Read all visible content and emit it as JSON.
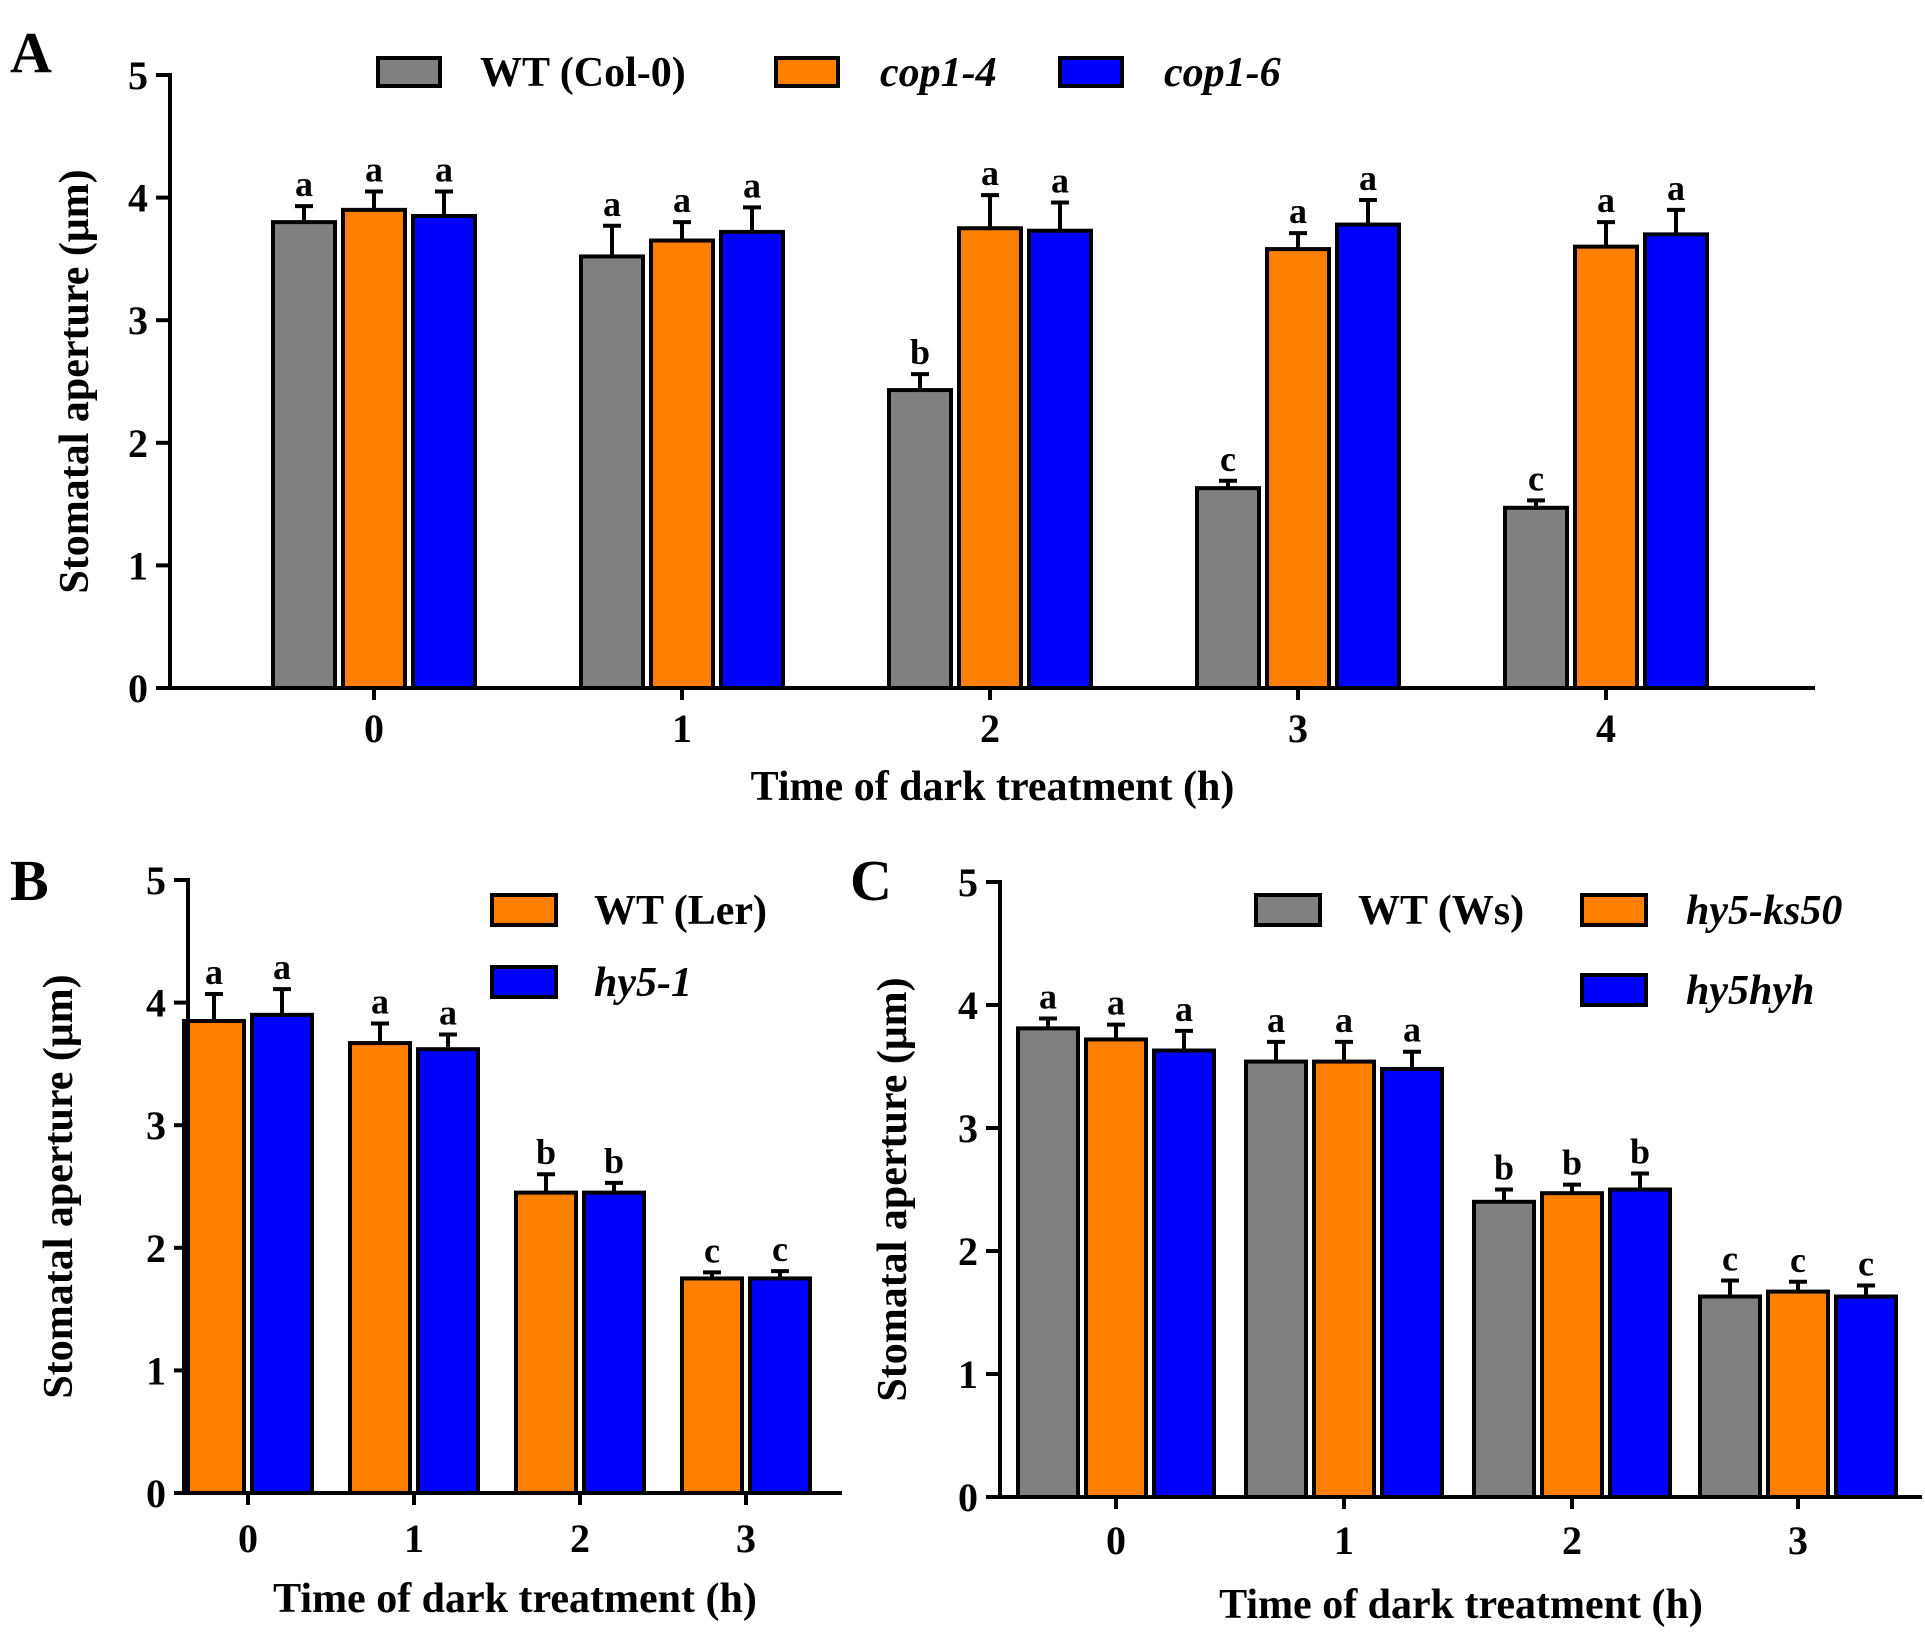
{
  "colors": {
    "grey": "#808080",
    "orange": "#ff7f00",
    "blue": "#0000ff",
    "axis": "#000000"
  },
  "chart_data": [
    {
      "panel": "A",
      "type": "bar",
      "xlabel": "Time of dark treatment (h)",
      "ylabel": "Stomatal aperture (μm)",
      "ylim": [
        0,
        5
      ],
      "yticks": [
        "0",
        "1",
        "2",
        "3",
        "4",
        "5"
      ],
      "categories": [
        "0",
        "1",
        "2",
        "3",
        "4"
      ],
      "legend_position": "top",
      "series": [
        {
          "name": "WT (Col-0)",
          "italic": false,
          "color": "grey",
          "values": [
            3.8,
            3.52,
            2.43,
            1.63,
            1.47
          ],
          "errors": [
            0.13,
            0.25,
            0.13,
            0.06,
            0.06
          ],
          "letters": [
            "a",
            "a",
            "b",
            "c",
            "c"
          ]
        },
        {
          "name": "cop1-4",
          "italic": true,
          "color": "orange",
          "values": [
            3.9,
            3.65,
            3.75,
            3.58,
            3.6
          ],
          "errors": [
            0.15,
            0.15,
            0.27,
            0.13,
            0.2
          ],
          "letters": [
            "a",
            "a",
            "a",
            "a",
            "a"
          ]
        },
        {
          "name": "cop1-6",
          "italic": true,
          "color": "blue",
          "values": [
            3.85,
            3.72,
            3.73,
            3.78,
            3.7
          ],
          "errors": [
            0.2,
            0.2,
            0.23,
            0.2,
            0.2
          ],
          "letters": [
            "a",
            "a",
            "a",
            "a",
            "a"
          ]
        }
      ]
    },
    {
      "panel": "B",
      "type": "bar",
      "xlabel": "Time of dark treatment (h)",
      "ylabel": "Stomatal aperture (μm)",
      "ylim": [
        0,
        5
      ],
      "yticks": [
        "0",
        "1",
        "2",
        "3",
        "4",
        "5"
      ],
      "categories": [
        "0",
        "1",
        "2",
        "3"
      ],
      "legend_position": "top-right",
      "series": [
        {
          "name": "WT (Ler)",
          "italic": false,
          "color": "orange",
          "values": [
            3.85,
            3.67,
            2.45,
            1.75
          ],
          "errors": [
            0.22,
            0.16,
            0.15,
            0.05
          ],
          "letters": [
            "a",
            "a",
            "b",
            "c"
          ]
        },
        {
          "name": "hy5-1",
          "italic": true,
          "color": "blue",
          "values": [
            3.9,
            3.62,
            2.45,
            1.75
          ],
          "errors": [
            0.21,
            0.12,
            0.08,
            0.06
          ],
          "letters": [
            "a",
            "a",
            "b",
            "c"
          ]
        }
      ]
    },
    {
      "panel": "C",
      "type": "bar",
      "xlabel": "Time of dark treatment (h)",
      "ylabel": "Stomatal aperture (μm)",
      "ylim": [
        0,
        5
      ],
      "yticks": [
        "0",
        "1",
        "2",
        "3",
        "4",
        "5"
      ],
      "categories": [
        "0",
        "1",
        "2",
        "3"
      ],
      "legend_position": "top-right",
      "series": [
        {
          "name": "WT (Ws)",
          "italic": false,
          "color": "grey",
          "values": [
            3.81,
            3.54,
            2.4,
            1.63
          ],
          "errors": [
            0.08,
            0.16,
            0.1,
            0.13
          ],
          "letters": [
            "a",
            "a",
            "b",
            "c"
          ]
        },
        {
          "name": "hy5-ks50",
          "italic": true,
          "color": "orange",
          "values": [
            3.72,
            3.54,
            2.47,
            1.67
          ],
          "errors": [
            0.12,
            0.16,
            0.07,
            0.08
          ],
          "letters": [
            "a",
            "a",
            "b",
            "c"
          ]
        },
        {
          "name": "hy5hyh",
          "italic": true,
          "color": "blue",
          "values": [
            3.63,
            3.48,
            2.5,
            1.63
          ],
          "errors": [
            0.16,
            0.14,
            0.13,
            0.09
          ],
          "letters": [
            "a",
            "a",
            "b",
            "c"
          ]
        }
      ]
    }
  ]
}
